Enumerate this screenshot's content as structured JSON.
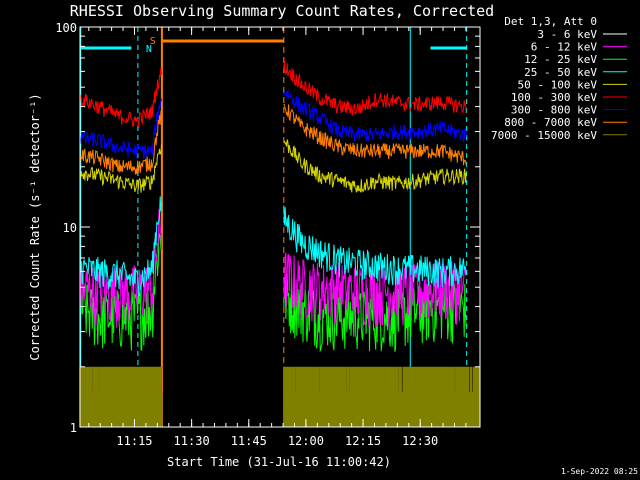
{
  "chart_data": {
    "type": "line",
    "title": "RHESSI Observing Summary Count Rates, Corrected",
    "xlabel": "Start Time (31-Jul-16 11:00:42)",
    "ylabel": "Corrected Count Rate (s⁻¹ detector⁻¹)",
    "yscale": "log",
    "ylim": [
      1,
      100
    ],
    "y_ticks": [
      {
        "value": 1,
        "label": "1"
      },
      {
        "value": 10,
        "label": "10"
      },
      {
        "value": 100,
        "label": "100"
      }
    ],
    "xlim_minutes_after_start": [
      0,
      105
    ],
    "x_ticks": [
      {
        "minutes": 14.3,
        "label": "11:15"
      },
      {
        "minutes": 29.3,
        "label": "11:30"
      },
      {
        "minutes": 44.3,
        "label": "11:45"
      },
      {
        "minutes": 59.3,
        "label": "12:00"
      },
      {
        "minutes": 74.3,
        "label": "12:15"
      },
      {
        "minutes": 89.3,
        "label": "12:30"
      }
    ],
    "legend_header": "Det 1,3, Att 0",
    "legend_position": "right",
    "series": [
      {
        "name": "3 - 6 keV",
        "color": "#ffffff"
      },
      {
        "name": "6 - 12 keV",
        "color": "#ff00ff"
      },
      {
        "name": "12 - 25 keV",
        "color": "#00ff00"
      },
      {
        "name": "25 - 50 keV",
        "color": "#00ffff"
      },
      {
        "name": "50 - 100 keV",
        "color": "#d4d400"
      },
      {
        "name": "100 - 300 keV",
        "color": "#ff0000"
      },
      {
        "name": "300 - 800 keV",
        "color": "#0000ff"
      },
      {
        "name": "800 - 7000 keV",
        "color": "#ff7f00"
      },
      {
        "name": "7000 - 15000 keV",
        "color": "#808000"
      }
    ],
    "segments_minutes": [
      [
        0,
        21.5
      ],
      [
        53.5,
        105
      ]
    ],
    "series_levels": {
      "100 - 300 keV": [
        [
          0,
          44
        ],
        [
          5,
          40
        ],
        [
          10,
          36
        ],
        [
          15,
          34
        ],
        [
          19,
          38
        ],
        [
          21,
          58
        ],
        [
          53.5,
          64
        ],
        [
          58,
          52
        ],
        [
          63,
          44
        ],
        [
          68,
          40
        ],
        [
          73,
          39
        ],
        [
          78,
          44
        ],
        [
          83,
          42
        ],
        [
          88,
          41
        ],
        [
          95,
          42
        ],
        [
          101,
          40
        ]
      ],
      "300 - 800 keV": [
        [
          0,
          28
        ],
        [
          5,
          27
        ],
        [
          10,
          25
        ],
        [
          15,
          24
        ],
        [
          19,
          24
        ],
        [
          21,
          42
        ],
        [
          53.5,
          48
        ],
        [
          58,
          40
        ],
        [
          63,
          35
        ],
        [
          68,
          30
        ],
        [
          73,
          29
        ],
        [
          78,
          29
        ],
        [
          83,
          30
        ],
        [
          88,
          30
        ],
        [
          95,
          31
        ],
        [
          101,
          29
        ]
      ],
      "800 - 7000 keV": [
        [
          0,
          23
        ],
        [
          5,
          22
        ],
        [
          10,
          20
        ],
        [
          15,
          20
        ],
        [
          19,
          21
        ],
        [
          21,
          35
        ],
        [
          53.5,
          40
        ],
        [
          58,
          32
        ],
        [
          63,
          28
        ],
        [
          68,
          25
        ],
        [
          73,
          24
        ],
        [
          78,
          24
        ],
        [
          83,
          24
        ],
        [
          88,
          24
        ],
        [
          95,
          24
        ],
        [
          101,
          22
        ]
      ],
      "50 - 100 keV": [
        [
          0,
          19
        ],
        [
          5,
          18
        ],
        [
          10,
          17
        ],
        [
          15,
          16
        ],
        [
          19,
          17
        ],
        [
          21,
          25
        ],
        [
          53.5,
          27
        ],
        [
          58,
          21
        ],
        [
          63,
          18
        ],
        [
          68,
          17
        ],
        [
          73,
          16
        ],
        [
          78,
          17
        ],
        [
          83,
          16.5
        ],
        [
          88,
          17
        ],
        [
          95,
          18
        ],
        [
          101,
          18
        ]
      ],
      "25 - 50 keV": [
        [
          0,
          6.3
        ],
        [
          5,
          6
        ],
        [
          10,
          5.8
        ],
        [
          15,
          5.4
        ],
        [
          19,
          6.2
        ],
        [
          21,
          13
        ],
        [
          53.5,
          11
        ],
        [
          58,
          8.5
        ],
        [
          63,
          7.5
        ],
        [
          68,
          6.8
        ],
        [
          73,
          6.6
        ],
        [
          78,
          6.4
        ],
        [
          83,
          6.2
        ],
        [
          88,
          6.2
        ],
        [
          95,
          6
        ],
        [
          101,
          6.2
        ]
      ],
      "6 - 12 keV": [
        [
          0,
          5
        ],
        [
          5,
          4.8
        ],
        [
          10,
          4.8
        ],
        [
          15,
          4.8
        ],
        [
          19,
          5
        ],
        [
          21,
          10
        ],
        [
          53.5,
          5.8
        ],
        [
          58,
          5.2
        ],
        [
          63,
          5
        ],
        [
          68,
          5
        ],
        [
          73,
          4.8
        ],
        [
          78,
          4.8
        ],
        [
          83,
          4.8
        ],
        [
          88,
          4.8
        ],
        [
          95,
          5
        ],
        [
          101,
          5
        ]
      ],
      "12 - 25 keV": [
        [
          0,
          4
        ],
        [
          5,
          3.6
        ],
        [
          10,
          3.6
        ],
        [
          15,
          3.6
        ],
        [
          19,
          4
        ],
        [
          21,
          9
        ],
        [
          53.5,
          4.6
        ],
        [
          58,
          4
        ],
        [
          63,
          3.7
        ],
        [
          68,
          3.6
        ],
        [
          73,
          3.6
        ],
        [
          78,
          3.6
        ],
        [
          83,
          3.6
        ],
        [
          88,
          3.8
        ],
        [
          95,
          4
        ],
        [
          101,
          4
        ]
      ],
      "7000 - 15000 keV": [
        [
          0,
          1.5
        ],
        [
          5,
          1.5
        ],
        [
          10,
          1.5
        ],
        [
          15,
          1.5
        ],
        [
          19,
          1.5
        ],
        [
          21,
          1.5
        ],
        [
          53.5,
          1.5
        ],
        [
          58,
          1.5
        ],
        [
          63,
          1.5
        ],
        [
          68,
          1.5
        ],
        [
          73,
          1.5
        ],
        [
          78,
          1.5
        ],
        [
          83,
          1.5
        ],
        [
          88,
          1.5
        ],
        [
          95,
          1.5
        ],
        [
          101,
          1.5
        ]
      ]
    },
    "annotations": [
      {
        "text": "S",
        "color": "#ff7f00"
      },
      {
        "text": "N",
        "color": "#00ffff"
      }
    ]
  },
  "timestamp": "1-Sep-2022 08:25"
}
